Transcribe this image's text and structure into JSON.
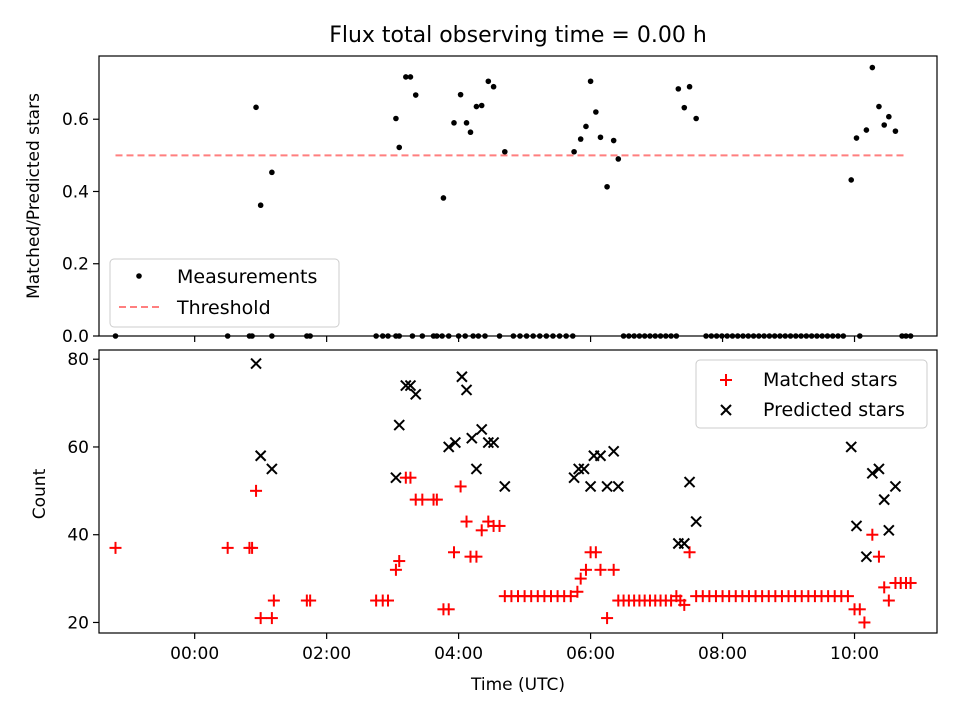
{
  "figure": {
    "title": "Flux total observing time = 0.00 h"
  },
  "colors": {
    "matched": "#ff0000",
    "predicted": "#000000",
    "threshold": "#ff7f7f",
    "measurement": "#000000"
  },
  "chart_data": [
    {
      "type": "scatter",
      "ylabel": "Matched/Predicted stars",
      "xlim": [
        -1.45,
        11.25
      ],
      "ylim": [
        0,
        0.775
      ],
      "x_ticks": [
        0,
        2,
        4,
        6,
        8,
        10
      ],
      "y_ticks": [
        0.0,
        0.2,
        0.4,
        0.6
      ],
      "y_tick_labels": [
        "0.0",
        "0.2",
        "0.4",
        "0.6"
      ],
      "legend_position": "lower-left",
      "legend": [
        "Measurements",
        "Threshold"
      ],
      "threshold": {
        "name": "Threshold",
        "value": 0.5,
        "x_range": [
          -1.2,
          10.75
        ],
        "style": "dashed"
      },
      "series": [
        {
          "name": "Measurements",
          "marker": "dot",
          "points": [
            [
              -1.2,
              0
            ],
            [
              0.5,
              0
            ],
            [
              0.83,
              0
            ],
            [
              0.87,
              0
            ],
            [
              1.17,
              0
            ],
            [
              1.7,
              0
            ],
            [
              1.75,
              0
            ],
            [
              2.75,
              0
            ],
            [
              2.85,
              0
            ],
            [
              2.93,
              0
            ],
            [
              3.05,
              0
            ],
            [
              3.1,
              0
            ],
            [
              3.3,
              0
            ],
            [
              3.45,
              0
            ],
            [
              3.62,
              0
            ],
            [
              3.67,
              0
            ],
            [
              3.75,
              0
            ],
            [
              3.85,
              0
            ],
            [
              4.0,
              0
            ],
            [
              4.1,
              0
            ],
            [
              4.22,
              0
            ],
            [
              4.3,
              0
            ],
            [
              4.4,
              0
            ],
            [
              4.62,
              0
            ],
            [
              4.83,
              0
            ],
            [
              4.93,
              0
            ],
            [
              5.03,
              0
            ],
            [
              5.13,
              0
            ],
            [
              5.23,
              0
            ],
            [
              5.33,
              0
            ],
            [
              5.43,
              0
            ],
            [
              5.53,
              0
            ],
            [
              5.63,
              0
            ],
            [
              5.73,
              0
            ],
            [
              6.5,
              0
            ],
            [
              6.58,
              0
            ],
            [
              6.66,
              0
            ],
            [
              6.74,
              0
            ],
            [
              6.82,
              0
            ],
            [
              6.9,
              0
            ],
            [
              6.98,
              0
            ],
            [
              7.06,
              0
            ],
            [
              7.14,
              0
            ],
            [
              7.22,
              0
            ],
            [
              7.3,
              0
            ],
            [
              7.75,
              0
            ],
            [
              7.83,
              0
            ],
            [
              7.91,
              0
            ],
            [
              7.99,
              0
            ],
            [
              8.07,
              0
            ],
            [
              8.15,
              0
            ],
            [
              8.23,
              0
            ],
            [
              8.31,
              0
            ],
            [
              8.39,
              0
            ],
            [
              8.47,
              0
            ],
            [
              8.55,
              0
            ],
            [
              8.63,
              0
            ],
            [
              8.71,
              0
            ],
            [
              8.79,
              0
            ],
            [
              8.87,
              0
            ],
            [
              8.95,
              0
            ],
            [
              9.03,
              0
            ],
            [
              9.11,
              0
            ],
            [
              9.19,
              0
            ],
            [
              9.27,
              0
            ],
            [
              9.35,
              0
            ],
            [
              9.43,
              0
            ],
            [
              9.51,
              0
            ],
            [
              9.59,
              0
            ],
            [
              9.67,
              0
            ],
            [
              9.75,
              0
            ],
            [
              9.83,
              0
            ],
            [
              10.08,
              0
            ],
            [
              10.72,
              0
            ],
            [
              10.78,
              0
            ],
            [
              10.85,
              0
            ],
            [
              0.93,
              0.633
            ],
            [
              1.0,
              0.362
            ],
            [
              1.17,
              0.453
            ],
            [
              3.05,
              0.602
            ],
            [
              3.1,
              0.522
            ],
            [
              3.2,
              0.717
            ],
            [
              3.27,
              0.717
            ],
            [
              3.35,
              0.667
            ],
            [
              3.77,
              0.382
            ],
            [
              3.93,
              0.59
            ],
            [
              4.03,
              0.668
            ],
            [
              4.12,
              0.59
            ],
            [
              4.18,
              0.564
            ],
            [
              4.27,
              0.635
            ],
            [
              4.35,
              0.638
            ],
            [
              4.45,
              0.705
            ],
            [
              4.53,
              0.69
            ],
            [
              4.7,
              0.51
            ],
            [
              5.75,
              0.51
            ],
            [
              5.85,
              0.545
            ],
            [
              5.93,
              0.58
            ],
            [
              6.0,
              0.705
            ],
            [
              6.08,
              0.62
            ],
            [
              6.15,
              0.55
            ],
            [
              6.25,
              0.413
            ],
            [
              6.35,
              0.541
            ],
            [
              6.42,
              0.49
            ],
            [
              7.33,
              0.684
            ],
            [
              7.42,
              0.632
            ],
            [
              7.5,
              0.69
            ],
            [
              7.6,
              0.602
            ],
            [
              9.95,
              0.432
            ],
            [
              10.03,
              0.548
            ],
            [
              10.18,
              0.57
            ],
            [
              10.27,
              0.743
            ],
            [
              10.37,
              0.635
            ],
            [
              10.45,
              0.584
            ],
            [
              10.52,
              0.607
            ],
            [
              10.62,
              0.567
            ]
          ]
        }
      ]
    },
    {
      "type": "scatter",
      "xlabel": "Time (UTC)",
      "ylabel": "Count",
      "xlim": [
        -1.45,
        11.25
      ],
      "ylim": [
        17.6,
        82.1
      ],
      "x_ticks": [
        0,
        2,
        4,
        6,
        8,
        10
      ],
      "x_tick_labels": [
        "00:00",
        "02:00",
        "04:00",
        "06:00",
        "08:00",
        "10:00"
      ],
      "y_ticks": [
        20,
        40,
        60,
        80
      ],
      "y_tick_labels": [
        "20",
        "40",
        "60",
        "80"
      ],
      "legend_position": "upper-right",
      "legend": [
        "Matched stars",
        "Predicted stars"
      ],
      "series": [
        {
          "name": "Matched stars",
          "marker": "plus",
          "points": [
            [
              -1.2,
              37
            ],
            [
              0.5,
              37
            ],
            [
              0.83,
              37
            ],
            [
              0.87,
              37
            ],
            [
              0.93,
              50
            ],
            [
              1.0,
              21
            ],
            [
              1.17,
              21
            ],
            [
              1.2,
              25
            ],
            [
              1.7,
              25
            ],
            [
              1.75,
              25
            ],
            [
              2.75,
              25
            ],
            [
              2.85,
              25
            ],
            [
              2.93,
              25
            ],
            [
              3.05,
              32
            ],
            [
              3.1,
              34
            ],
            [
              3.2,
              53
            ],
            [
              3.27,
              53
            ],
            [
              3.35,
              48
            ],
            [
              3.45,
              48
            ],
            [
              3.62,
              48
            ],
            [
              3.67,
              48
            ],
            [
              3.77,
              23
            ],
            [
              3.85,
              23
            ],
            [
              3.93,
              36
            ],
            [
              4.03,
              51
            ],
            [
              4.12,
              43
            ],
            [
              4.18,
              35
            ],
            [
              4.27,
              35
            ],
            [
              4.35,
              41
            ],
            [
              4.45,
              43
            ],
            [
              4.53,
              42
            ],
            [
              4.62,
              42
            ],
            [
              4.7,
              26
            ],
            [
              4.8,
              26
            ],
            [
              4.9,
              26
            ],
            [
              5.0,
              26
            ],
            [
              5.1,
              26
            ],
            [
              5.2,
              26
            ],
            [
              5.3,
              26
            ],
            [
              5.4,
              26
            ],
            [
              5.5,
              26
            ],
            [
              5.6,
              26
            ],
            [
              5.7,
              26
            ],
            [
              5.8,
              27
            ],
            [
              5.85,
              30
            ],
            [
              5.93,
              32
            ],
            [
              6.0,
              36
            ],
            [
              6.08,
              36
            ],
            [
              6.15,
              32
            ],
            [
              6.25,
              21
            ],
            [
              6.35,
              32
            ],
            [
              6.42,
              25
            ],
            [
              6.5,
              25
            ],
            [
              6.58,
              25
            ],
            [
              6.66,
              25
            ],
            [
              6.74,
              25
            ],
            [
              6.82,
              25
            ],
            [
              6.9,
              25
            ],
            [
              6.98,
              25
            ],
            [
              7.06,
              25
            ],
            [
              7.14,
              25
            ],
            [
              7.22,
              25
            ],
            [
              7.3,
              26
            ],
            [
              7.36,
              25
            ],
            [
              7.42,
              24
            ],
            [
              7.5,
              36
            ],
            [
              7.6,
              26
            ],
            [
              7.7,
              26
            ],
            [
              7.8,
              26
            ],
            [
              7.9,
              26
            ],
            [
              8.0,
              26
            ],
            [
              8.1,
              26
            ],
            [
              8.2,
              26
            ],
            [
              8.3,
              26
            ],
            [
              8.4,
              26
            ],
            [
              8.5,
              26
            ],
            [
              8.6,
              26
            ],
            [
              8.7,
              26
            ],
            [
              8.8,
              26
            ],
            [
              8.9,
              26
            ],
            [
              9.0,
              26
            ],
            [
              9.1,
              26
            ],
            [
              9.2,
              26
            ],
            [
              9.3,
              26
            ],
            [
              9.4,
              26
            ],
            [
              9.5,
              26
            ],
            [
              9.6,
              26
            ],
            [
              9.7,
              26
            ],
            [
              9.8,
              26
            ],
            [
              9.9,
              26
            ],
            [
              10.0,
              23
            ],
            [
              10.08,
              23
            ],
            [
              10.15,
              20
            ],
            [
              10.27,
              40
            ],
            [
              10.37,
              35
            ],
            [
              10.45,
              28
            ],
            [
              10.52,
              25
            ],
            [
              10.62,
              29
            ],
            [
              10.7,
              29
            ],
            [
              10.78,
              29
            ],
            [
              10.85,
              29
            ]
          ]
        },
        {
          "name": "Predicted stars",
          "marker": "x",
          "points": [
            [
              0.93,
              79
            ],
            [
              1.0,
              58
            ],
            [
              1.17,
              55
            ],
            [
              3.05,
              53
            ],
            [
              3.1,
              65
            ],
            [
              3.2,
              74
            ],
            [
              3.27,
              74
            ],
            [
              3.35,
              72
            ],
            [
              3.85,
              60
            ],
            [
              3.95,
              61
            ],
            [
              4.05,
              76
            ],
            [
              4.12,
              73
            ],
            [
              4.2,
              62
            ],
            [
              4.27,
              55
            ],
            [
              4.35,
              64
            ],
            [
              4.45,
              61
            ],
            [
              4.53,
              61
            ],
            [
              4.7,
              51
            ],
            [
              5.75,
              53
            ],
            [
              5.82,
              55
            ],
            [
              5.9,
              55
            ],
            [
              6.0,
              51
            ],
            [
              6.05,
              58
            ],
            [
              6.15,
              58
            ],
            [
              6.25,
              51
            ],
            [
              6.35,
              59
            ],
            [
              6.42,
              51
            ],
            [
              7.33,
              38
            ],
            [
              7.42,
              38
            ],
            [
              7.5,
              52
            ],
            [
              7.6,
              43
            ],
            [
              9.95,
              60
            ],
            [
              10.03,
              42
            ],
            [
              10.18,
              35
            ],
            [
              10.27,
              54
            ],
            [
              10.37,
              55
            ],
            [
              10.45,
              48
            ],
            [
              10.52,
              41
            ],
            [
              10.62,
              51
            ]
          ]
        }
      ]
    }
  ]
}
